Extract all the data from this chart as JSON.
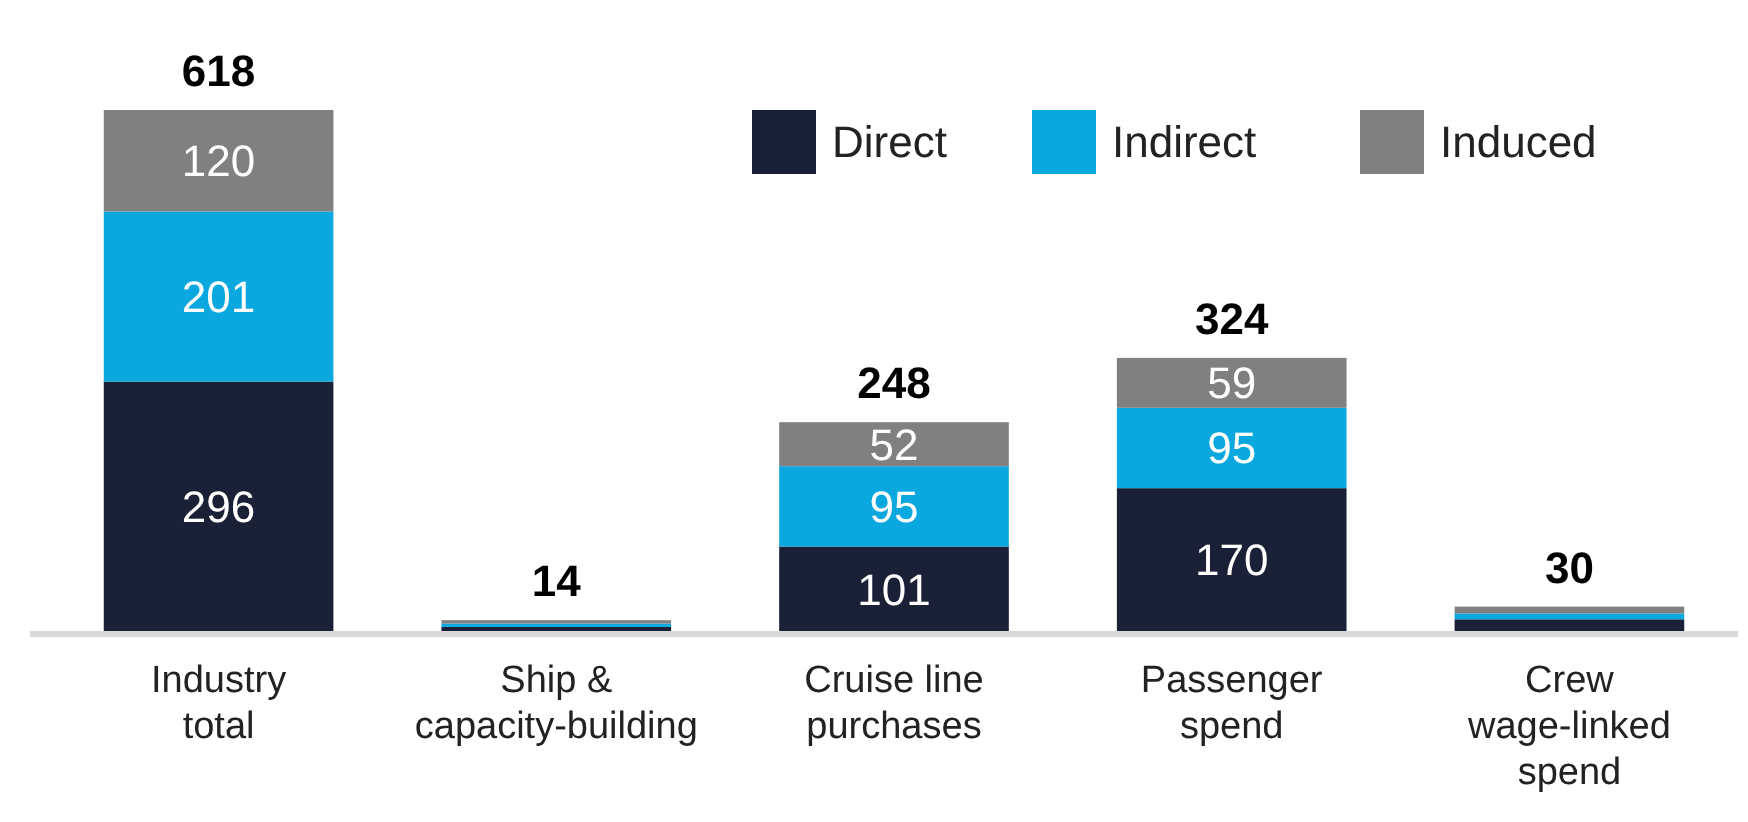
{
  "chart_data": {
    "type": "bar",
    "stacked": true,
    "categories": [
      "Industry total",
      "Ship & capacity-building",
      "Cruise line purchases",
      "Passenger spend",
      "Crew wage-linked spend"
    ],
    "series": [
      {
        "name": "Direct",
        "color": "#1a2035",
        "values": [
          296,
          6,
          101,
          170,
          15
        ],
        "value_labels": [
          "296",
          null,
          "101",
          "170",
          null
        ]
      },
      {
        "name": "Indirect",
        "color": "#0aa8de",
        "values": [
          201,
          4,
          95,
          95,
          7
        ],
        "value_labels": [
          "201",
          null,
          "95",
          "95",
          null
        ]
      },
      {
        "name": "Induced",
        "color": "#808080",
        "values": [
          120,
          4,
          52,
          59,
          8
        ],
        "value_labels": [
          "120",
          null,
          "52",
          "59",
          null
        ]
      }
    ],
    "totals": [
      "618",
      "14",
      "248",
      "324",
      "30"
    ],
    "legend": "top right"
  }
}
